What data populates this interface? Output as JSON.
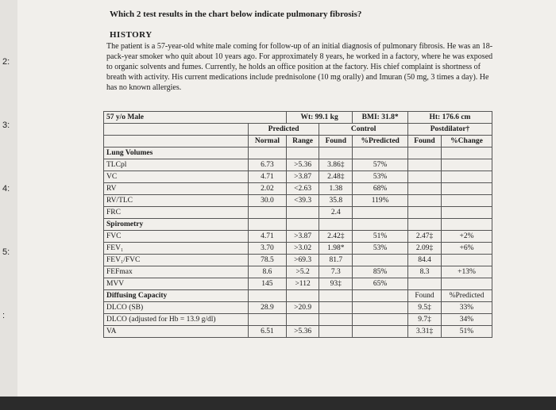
{
  "markers": [
    "2:",
    "3:",
    "4:",
    "5:",
    ":"
  ],
  "question": "Which 2 test results in the chart below indicate pulmonary fibrosis?",
  "history": {
    "heading": "HISTORY",
    "text": "The patient is a 57-year-old white male coming for follow-up of an initial diagnosis of pulmonary fibrosis. He was an 18-pack-year smoker who quit about 10 years ago. For approximately 8 years, he worked in a factory, where he was exposed to organic solvents and fumes. Currently, he holds an office position at the factory. His chief complaint is shortness of breath with activity. His current medications include prednisolone (10 mg orally) and Imuran (50 mg, 3 times a day). He has no known allergies."
  },
  "table": {
    "patient": [
      "57 y/o Male",
      "Wt: 99.1 kg",
      "BMI: 31.8*",
      "Ht: 176.6 cm"
    ],
    "group_headers": [
      "Predicted",
      "Control",
      "Postdilator†"
    ],
    "sub_headers": [
      "Normal",
      "Range",
      "Found",
      "%Predicted",
      "Found",
      "%Change"
    ],
    "rows": [
      {
        "label": "Lung Volumes",
        "section": true
      },
      {
        "label": "TLCpl",
        "cells": [
          "6.73",
          ">5.36",
          "3.86‡",
          "57%",
          null,
          null
        ]
      },
      {
        "label": "VC",
        "cells": [
          "4.71",
          ">3.87",
          "2.48‡",
          "53%",
          null,
          null
        ]
      },
      {
        "label": "RV",
        "cells": [
          "2.02",
          "<2.63",
          "1.38",
          "68%",
          null,
          null
        ]
      },
      {
        "label": "RV/TLC",
        "cells": [
          "30.0",
          "<39.3",
          "35.8",
          "119%",
          null,
          null
        ]
      },
      {
        "label": "FRC",
        "cells": [
          null,
          null,
          "2.4",
          null,
          null,
          null
        ]
      },
      {
        "label": "Spirometry",
        "section": true
      },
      {
        "label": "FVC",
        "cells": [
          "4.71",
          ">3.87",
          "2.42‡",
          "51%",
          "2.47‡",
          "+2%"
        ]
      },
      {
        "label": "FEV₁",
        "cells": [
          "3.70",
          ">3.02",
          "1.98*",
          "53%",
          "2.09‡",
          "+6%"
        ]
      },
      {
        "label": "FEV₁/FVC",
        "cells": [
          "78.5",
          ">69.3",
          "81.7",
          null,
          "84.4",
          null
        ]
      },
      {
        "label": "FEFmax",
        "cells": [
          "8.6",
          ">5.2",
          "7.3",
          "85%",
          "8.3",
          "+13%"
        ]
      },
      {
        "label": "MVV",
        "cells": [
          "145",
          ">112",
          "93‡",
          "65%",
          null,
          null
        ]
      },
      {
        "label": "Diffusing Capacity",
        "section": true,
        "cells": [
          null,
          null,
          null,
          null,
          "Found",
          "%Predicted"
        ]
      },
      {
        "label": "DLCO (SB)",
        "cells": [
          "28.9",
          ">20.9",
          null,
          null,
          "9.5‡",
          "33%"
        ]
      },
      {
        "label": "DLCO (adjusted for Hb = 13.9 g/dl)",
        "cells": [
          null,
          null,
          null,
          null,
          "9.7‡",
          "34%"
        ]
      },
      {
        "label": "VA",
        "cells": [
          "6.51",
          ">5.36",
          null,
          null,
          "3.31‡",
          "51%"
        ]
      }
    ]
  }
}
